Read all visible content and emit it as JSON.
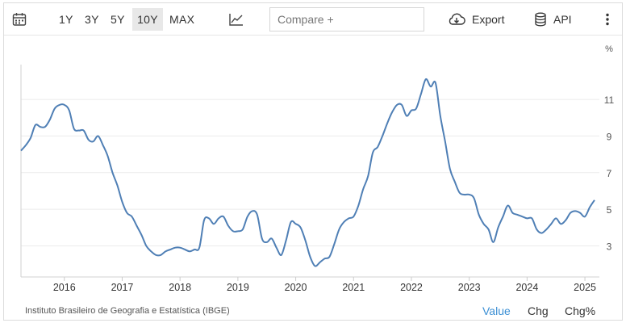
{
  "toolbar": {
    "calendar_icon": "calendar-icon",
    "ranges": [
      {
        "label": "1Y",
        "active": false
      },
      {
        "label": "3Y",
        "active": false
      },
      {
        "label": "5Y",
        "active": false
      },
      {
        "label": "10Y",
        "active": true
      },
      {
        "label": "MAX",
        "active": false
      }
    ],
    "chart_type_icon": "line-chart-icon",
    "compare_placeholder": "Compare +",
    "export_label": "Export",
    "export_icon": "cloud-download-icon",
    "api_label": "API",
    "api_icon": "database-icon",
    "more_icon": "vertical-ellipsis-icon"
  },
  "chart_data": {
    "type": "line",
    "unit_label": "%",
    "xlabel": "",
    "ylabel": "",
    "ylim": [
      1.3,
      12.9
    ],
    "xlim": [
      "2015-04",
      "2025-04"
    ],
    "y_ticks": [
      3,
      5,
      7,
      9,
      11
    ],
    "x_ticks": [
      "2016",
      "2017",
      "2018",
      "2019",
      "2020",
      "2021",
      "2022",
      "2023",
      "2024",
      "2025"
    ],
    "grid": "horizontal",
    "line_color": "#4f7fb5",
    "series": [
      {
        "x": [
          "2015-04",
          "2015-05",
          "2015-06",
          "2015-07",
          "2015-08",
          "2015-09",
          "2015-10",
          "2015-11",
          "2015-12",
          "2016-01",
          "2016-02",
          "2016-03",
          "2016-04",
          "2016-05",
          "2016-06",
          "2016-07",
          "2016-08",
          "2016-09",
          "2016-10",
          "2016-11",
          "2016-12",
          "2017-01",
          "2017-02",
          "2017-03",
          "2017-04",
          "2017-05",
          "2017-06",
          "2017-07",
          "2017-08",
          "2017-09",
          "2017-10",
          "2017-11",
          "2017-12",
          "2018-01",
          "2018-02",
          "2018-03",
          "2018-04",
          "2018-05",
          "2018-06",
          "2018-07",
          "2018-08",
          "2018-09",
          "2018-10",
          "2018-11",
          "2018-12",
          "2019-01",
          "2019-02",
          "2019-03",
          "2019-04",
          "2019-05",
          "2019-06",
          "2019-07",
          "2019-08",
          "2019-09",
          "2019-10",
          "2019-11",
          "2019-12",
          "2020-01",
          "2020-02",
          "2020-03",
          "2020-04",
          "2020-05",
          "2020-06",
          "2020-07",
          "2020-08",
          "2020-09",
          "2020-10",
          "2020-11",
          "2020-12",
          "2021-01",
          "2021-02",
          "2021-03",
          "2021-04",
          "2021-05",
          "2021-06",
          "2021-07",
          "2021-08",
          "2021-09",
          "2021-10",
          "2021-11",
          "2021-12",
          "2022-01",
          "2022-02",
          "2022-03",
          "2022-04",
          "2022-05",
          "2022-06",
          "2022-07",
          "2022-08",
          "2022-09",
          "2022-10",
          "2022-11",
          "2022-12",
          "2023-01",
          "2023-02",
          "2023-03",
          "2023-04",
          "2023-05",
          "2023-06",
          "2023-07",
          "2023-08",
          "2023-09",
          "2023-10",
          "2023-11",
          "2023-12",
          "2024-01",
          "2024-02",
          "2024-03",
          "2024-04",
          "2024-05",
          "2024-06",
          "2024-07",
          "2024-08",
          "2024-09",
          "2024-10",
          "2024-11",
          "2024-12",
          "2025-01",
          "2025-02",
          "2025-03"
        ],
        "values": [
          8.2,
          8.5,
          8.9,
          9.6,
          9.5,
          9.5,
          9.9,
          10.5,
          10.7,
          10.7,
          10.4,
          9.4,
          9.3,
          9.3,
          8.8,
          8.7,
          9.0,
          8.5,
          7.9,
          7.0,
          6.3,
          5.4,
          4.8,
          4.6,
          4.1,
          3.6,
          3.0,
          2.7,
          2.5,
          2.5,
          2.7,
          2.8,
          2.9,
          2.9,
          2.8,
          2.7,
          2.8,
          2.9,
          4.4,
          4.5,
          4.2,
          4.5,
          4.6,
          4.1,
          3.8,
          3.8,
          3.9,
          4.6,
          4.9,
          4.7,
          3.4,
          3.2,
          3.4,
          2.9,
          2.5,
          3.3,
          4.3,
          4.2,
          4.0,
          3.3,
          2.4,
          1.9,
          2.1,
          2.3,
          2.4,
          3.1,
          3.9,
          4.3,
          4.5,
          4.6,
          5.2,
          6.1,
          6.8,
          8.1,
          8.4,
          9.0,
          9.7,
          10.3,
          10.7,
          10.7,
          10.1,
          10.4,
          10.5,
          11.3,
          12.1,
          11.7,
          11.9,
          10.1,
          8.7,
          7.2,
          6.5,
          5.9,
          5.8,
          5.8,
          5.6,
          4.7,
          4.2,
          3.9,
          3.2,
          4.0,
          4.6,
          5.2,
          4.8,
          4.7,
          4.6,
          4.5,
          4.5,
          3.9,
          3.7,
          3.9,
          4.2,
          4.5,
          4.2,
          4.4,
          4.8,
          4.9,
          4.8,
          4.6,
          5.1,
          5.5
        ]
      }
    ]
  },
  "footer": {
    "source": "Instituto Brasileiro de Geografia e Estatística (IBGE)",
    "tabs": [
      {
        "label": "Value",
        "active": true
      },
      {
        "label": "Chg",
        "active": false
      },
      {
        "label": "Chg%",
        "active": false
      }
    ]
  }
}
